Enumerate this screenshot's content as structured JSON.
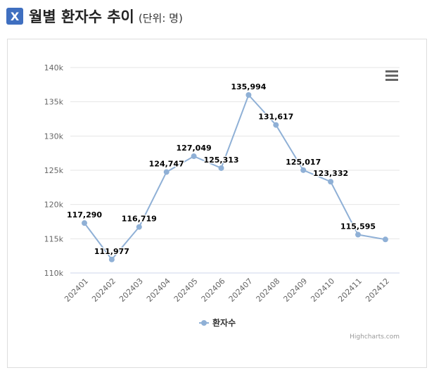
{
  "header": {
    "logo_glyph": "X",
    "title": "월별 환자수 추이",
    "unit": "(단위: 명)"
  },
  "chart_data": {
    "type": "line",
    "categories": [
      "202401",
      "202402",
      "202403",
      "202404",
      "202405",
      "202406",
      "202407",
      "202408",
      "202409",
      "202410",
      "202411",
      "202412"
    ],
    "series": [
      {
        "name": "환자수",
        "values": [
          117290,
          111977,
          116719,
          124747,
          127049,
          125313,
          135994,
          131617,
          125017,
          123332,
          115595,
          114900
        ],
        "color": "#8fb0d6"
      }
    ],
    "data_labels": [
      "117,290",
      "111,977",
      "116,719",
      "124,747",
      "127,049",
      "125,313",
      "135,994",
      "131,617",
      "125,017",
      "123,332",
      "115,595",
      ""
    ],
    "ylim": [
      110000,
      140000
    ],
    "yticks": [
      "110k",
      "115k",
      "120k",
      "125k",
      "130k",
      "135k",
      "140k"
    ],
    "grid": true,
    "legend": "bottom-center",
    "credits": "Highcharts.com"
  }
}
